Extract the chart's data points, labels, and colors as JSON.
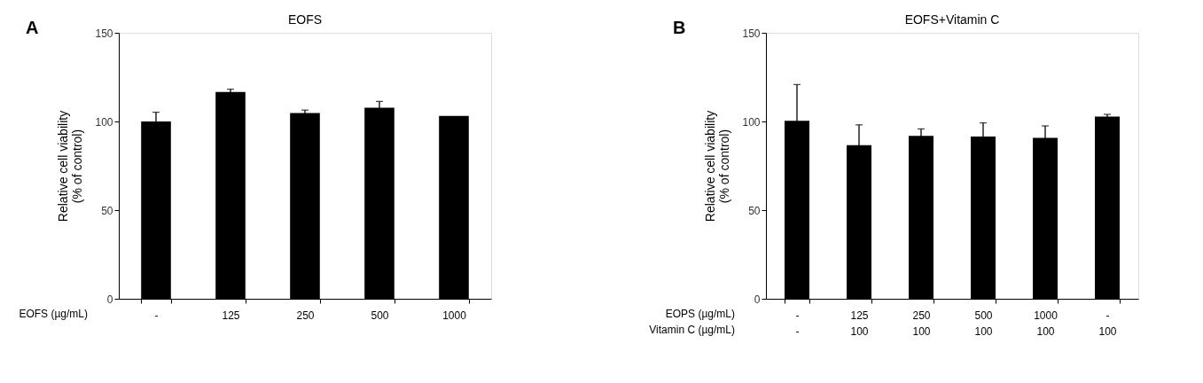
{
  "chart_data": [
    {
      "type": "bar",
      "title": "EOFS",
      "ylabel": "Relative cell viability\n(% of control)",
      "xlabel": "EOFS (µg/mL)",
      "annotations": [
        "A"
      ],
      "categories": [
        "-",
        "125",
        "250",
        "500",
        "1000"
      ],
      "values": [
        100,
        116.6,
        104.7,
        107.8,
        103.1
      ],
      "errors": [
        5.2,
        1.6,
        1.7,
        3.5,
        null
      ],
      "color": "#000000",
      "ylim": [
        0,
        150
      ],
      "yticks": [
        0,
        50,
        100,
        150
      ],
      "grid": false
    },
    {
      "type": "bar",
      "title": "EOFS+Vitamin C",
      "ylabel": "Relative cell viability\n(% of control)",
      "xlabel": "EOPS  (µg/mL)\nVitamin  C  (µg/mL)",
      "annotations": [
        "B"
      ],
      "categories": [
        "-\n-",
        "125\n100",
        "250\n100",
        "500\n100",
        "1000\n100",
        "-\n100"
      ],
      "values": [
        100.4,
        86.6,
        91.9,
        91.5,
        90.8,
        102.8
      ],
      "errors": [
        20.4,
        11.5,
        3.9,
        7.7,
        6.7,
        1.2
      ],
      "color": "#000000",
      "ylim": [
        0,
        150
      ],
      "yticks": [
        0,
        50,
        100,
        150
      ],
      "grid": false
    }
  ]
}
